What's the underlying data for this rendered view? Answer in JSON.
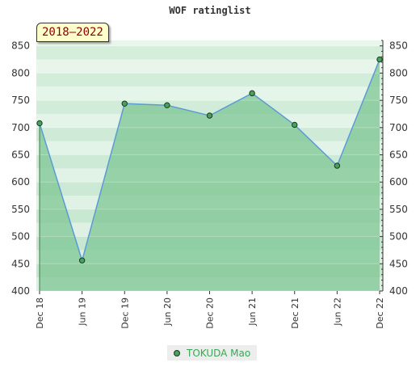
{
  "chart_data": {
    "type": "area",
    "title": "WOF ratinglist",
    "period": "2018–2022",
    "x": [
      "Dec 18",
      "Jun 19",
      "Dec 19",
      "Jun 20",
      "Dec 20",
      "Jun 21",
      "Dec 21",
      "Jun 22",
      "Dec 22"
    ],
    "series": [
      {
        "name": "TOKUDA Mao",
        "values": [
          708,
          456,
          744,
          741,
          722,
          763,
          705,
          630,
          825
        ]
      }
    ],
    "ylim": [
      400,
      860
    ],
    "yticks": [
      400,
      450,
      500,
      550,
      600,
      650,
      700,
      750,
      800,
      850
    ],
    "grid": true,
    "legend": "bottom-center",
    "colors": {
      "line": "#5b9bd5",
      "fill": "#7dc593",
      "marker": "#4aa060"
    }
  }
}
